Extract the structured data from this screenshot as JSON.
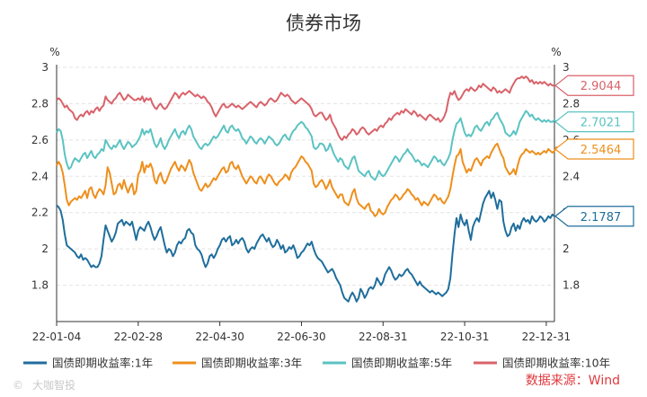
{
  "chart_data": {
    "type": "line",
    "title": "债券市场",
    "ylabel_left": "%",
    "ylabel_right": "%",
    "ylim": [
      1.6,
      3.0
    ],
    "yticks": [
      "1.8",
      "2",
      "2.2",
      "2.4",
      "2.6",
      "2.8",
      "3"
    ],
    "grid": true,
    "legend_position": "bottom",
    "x_tick_labels": [
      "22-01-04",
      "22-02-28",
      "22-04-30",
      "22-06-30",
      "22-08-31",
      "22-10-31",
      "22-12-31"
    ],
    "x_tick_index": [
      0,
      40,
      80,
      120,
      160,
      200,
      240
    ],
    "series": [
      {
        "name": "国债即期收益率:1年",
        "color": "#1f6e9c",
        "last_label": "2.1787",
        "values": [
          2.24,
          2.23,
          2.21,
          2.16,
          2.08,
          2.02,
          2.01,
          2.0,
          1.99,
          1.98,
          1.96,
          1.95,
          1.97,
          1.94,
          1.95,
          1.94,
          1.92,
          1.9,
          1.91,
          1.9,
          1.9,
          1.92,
          1.96,
          2.05,
          2.13,
          2.1,
          2.07,
          2.04,
          2.06,
          2.09,
          2.14,
          2.15,
          2.16,
          2.13,
          2.15,
          2.14,
          2.13,
          2.15,
          2.1,
          2.05,
          2.1,
          2.12,
          2.11,
          2.1,
          2.13,
          2.15,
          2.12,
          2.08,
          2.05,
          2.07,
          2.1,
          2.12,
          2.07,
          2.02,
          1.98,
          2.0,
          1.99,
          1.96,
          1.98,
          2.02,
          2.04,
          2.03,
          2.05,
          2.06,
          2.1,
          2.11,
          2.09,
          2.08,
          2.02,
          2.0,
          1.99,
          1.97,
          1.93,
          1.9,
          1.92,
          1.96,
          1.97,
          1.95,
          1.97,
          2.0,
          2.02,
          2.05,
          2.06,
          2.04,
          2.06,
          2.07,
          2.02,
          2.03,
          2.05,
          2.03,
          2.05,
          2.06,
          2.04,
          2.0,
          1.98,
          2.0,
          2.01,
          2.0,
          2.03,
          2.05,
          2.07,
          2.08,
          2.06,
          2.04,
          2.06,
          2.03,
          2.01,
          2.02,
          2.05,
          2.03,
          2.0,
          2.02,
          1.98,
          1.99,
          2.01,
          2.0,
          2.02,
          1.99,
          1.95,
          1.96,
          1.98,
          1.99,
          2.01,
          2.03,
          2.02,
          2.04,
          2.0,
          1.97,
          1.95,
          1.94,
          1.93,
          1.91,
          1.89,
          1.87,
          1.88,
          1.89,
          1.87,
          1.84,
          1.82,
          1.8,
          1.76,
          1.73,
          1.72,
          1.71,
          1.74,
          1.76,
          1.74,
          1.71,
          1.73,
          1.78,
          1.76,
          1.73,
          1.75,
          1.78,
          1.79,
          1.78,
          1.8,
          1.84,
          1.82,
          1.8,
          1.82,
          1.86,
          1.88,
          1.9,
          1.88,
          1.85,
          1.83,
          1.84,
          1.86,
          1.85,
          1.86,
          1.88,
          1.89,
          1.87,
          1.86,
          1.84,
          1.82,
          1.8,
          1.82,
          1.8,
          1.79,
          1.78,
          1.77,
          1.76,
          1.77,
          1.76,
          1.75,
          1.76,
          1.75,
          1.74,
          1.75,
          1.76,
          1.78,
          1.84,
          1.97,
          2.08,
          2.17,
          2.12,
          2.19,
          2.15,
          2.13,
          2.16,
          2.1,
          2.05,
          2.12,
          2.15,
          2.17,
          2.15,
          2.2,
          2.25,
          2.28,
          2.3,
          2.32,
          2.28,
          2.31,
          2.27,
          2.22,
          2.27,
          2.26,
          2.15,
          2.1,
          2.07,
          2.08,
          2.12,
          2.14,
          2.1,
          2.13,
          2.11,
          2.15,
          2.17,
          2.15,
          2.16,
          2.14,
          2.18,
          2.16,
          2.15,
          2.16,
          2.18,
          2.17,
          2.15,
          2.16,
          2.18,
          2.17,
          2.19,
          2.18
        ]
      },
      {
        "name": "国债即期收益率:3年",
        "color": "#ee8f1c",
        "last_label": "2.5464",
        "values": [
          2.46,
          2.48,
          2.46,
          2.42,
          2.35,
          2.27,
          2.24,
          2.26,
          2.27,
          2.28,
          2.27,
          2.29,
          2.28,
          2.3,
          2.32,
          2.28,
          2.33,
          2.34,
          2.3,
          2.28,
          2.31,
          2.33,
          2.32,
          2.3,
          2.35,
          2.45,
          2.42,
          2.36,
          2.3,
          2.31,
          2.35,
          2.36,
          2.33,
          2.38,
          2.34,
          2.31,
          2.34,
          2.36,
          2.3,
          2.32,
          2.41,
          2.43,
          2.48,
          2.42,
          2.46,
          2.45,
          2.47,
          2.44,
          2.38,
          2.36,
          2.4,
          2.42,
          2.38,
          2.36,
          2.38,
          2.41,
          2.44,
          2.46,
          2.48,
          2.45,
          2.43,
          2.46,
          2.45,
          2.43,
          2.46,
          2.49,
          2.47,
          2.42,
          2.39,
          2.36,
          2.33,
          2.32,
          2.34,
          2.36,
          2.34,
          2.35,
          2.37,
          2.39,
          2.38,
          2.4,
          2.42,
          2.44,
          2.45,
          2.42,
          2.43,
          2.47,
          2.48,
          2.45,
          2.44,
          2.46,
          2.43,
          2.4,
          2.38,
          2.36,
          2.38,
          2.4,
          2.39,
          2.37,
          2.36,
          2.39,
          2.4,
          2.38,
          2.36,
          2.39,
          2.41,
          2.4,
          2.38,
          2.36,
          2.35,
          2.37,
          2.38,
          2.39,
          2.41,
          2.4,
          2.38,
          2.42,
          2.44,
          2.45,
          2.47,
          2.49,
          2.51,
          2.5,
          2.48,
          2.47,
          2.45,
          2.43,
          2.36,
          2.34,
          2.35,
          2.37,
          2.38,
          2.36,
          2.33,
          2.35,
          2.38,
          2.34,
          2.32,
          2.3,
          2.28,
          2.3,
          2.3,
          2.26,
          2.25,
          2.24,
          2.27,
          2.31,
          2.33,
          2.28,
          2.25,
          2.24,
          2.23,
          2.22,
          2.24,
          2.25,
          2.21,
          2.2,
          2.18,
          2.19,
          2.22,
          2.2,
          2.19,
          2.2,
          2.23,
          2.25,
          2.27,
          2.28,
          2.3,
          2.29,
          2.27,
          2.28,
          2.3,
          2.31,
          2.33,
          2.32,
          2.3,
          2.29,
          2.27,
          2.28,
          2.26,
          2.24,
          2.26,
          2.25,
          2.24,
          2.26,
          2.28,
          2.3,
          2.29,
          2.27,
          2.28,
          2.26,
          2.25,
          2.27,
          2.29,
          2.33,
          2.4,
          2.46,
          2.51,
          2.52,
          2.55,
          2.48,
          2.45,
          2.42,
          2.44,
          2.43,
          2.46,
          2.49,
          2.5,
          2.48,
          2.46,
          2.49,
          2.5,
          2.51,
          2.5,
          2.53,
          2.55,
          2.57,
          2.58,
          2.55,
          2.52,
          2.5,
          2.45,
          2.43,
          2.41,
          2.42,
          2.44,
          2.41,
          2.46,
          2.5,
          2.52,
          2.53,
          2.55,
          2.54,
          2.53,
          2.54,
          2.53,
          2.52,
          2.53,
          2.52,
          2.53,
          2.54,
          2.53,
          2.55,
          2.54,
          2.53,
          2.54,
          2.56,
          2.55
        ]
      },
      {
        "name": "国债即期收益率:5年",
        "color": "#5bc3c2",
        "last_label": "2.7021",
        "values": [
          2.64,
          2.66,
          2.65,
          2.6,
          2.52,
          2.47,
          2.44,
          2.45,
          2.48,
          2.5,
          2.49,
          2.48,
          2.5,
          2.52,
          2.53,
          2.5,
          2.52,
          2.54,
          2.51,
          2.5,
          2.52,
          2.53,
          2.55,
          2.54,
          2.6,
          2.58,
          2.56,
          2.55,
          2.57,
          2.56,
          2.58,
          2.6,
          2.57,
          2.55,
          2.57,
          2.59,
          2.58,
          2.56,
          2.57,
          2.58,
          2.6,
          2.62,
          2.66,
          2.63,
          2.65,
          2.64,
          2.66,
          2.62,
          2.58,
          2.56,
          2.58,
          2.61,
          2.57,
          2.55,
          2.57,
          2.6,
          2.62,
          2.64,
          2.66,
          2.63,
          2.61,
          2.64,
          2.65,
          2.63,
          2.66,
          2.68,
          2.66,
          2.62,
          2.6,
          2.58,
          2.56,
          2.55,
          2.57,
          2.58,
          2.57,
          2.58,
          2.6,
          2.62,
          2.61,
          2.62,
          2.64,
          2.66,
          2.68,
          2.65,
          2.64,
          2.67,
          2.68,
          2.66,
          2.65,
          2.66,
          2.64,
          2.61,
          2.6,
          2.58,
          2.6,
          2.62,
          2.61,
          2.59,
          2.58,
          2.6,
          2.61,
          2.6,
          2.58,
          2.6,
          2.62,
          2.61,
          2.6,
          2.58,
          2.57,
          2.58,
          2.6,
          2.62,
          2.63,
          2.61,
          2.6,
          2.63,
          2.65,
          2.66,
          2.68,
          2.69,
          2.7,
          2.69,
          2.67,
          2.66,
          2.64,
          2.62,
          2.56,
          2.55,
          2.56,
          2.58,
          2.58,
          2.57,
          2.54,
          2.55,
          2.58,
          2.55,
          2.52,
          2.5,
          2.48,
          2.5,
          2.49,
          2.46,
          2.45,
          2.44,
          2.47,
          2.5,
          2.51,
          2.47,
          2.43,
          2.42,
          2.41,
          2.4,
          2.42,
          2.43,
          2.4,
          2.39,
          2.38,
          2.4,
          2.43,
          2.41,
          2.4,
          2.41,
          2.43,
          2.45,
          2.47,
          2.49,
          2.51,
          2.5,
          2.48,
          2.5,
          2.52,
          2.53,
          2.55,
          2.53,
          2.52,
          2.5,
          2.48,
          2.49,
          2.48,
          2.46,
          2.47,
          2.46,
          2.45,
          2.47,
          2.49,
          2.51,
          2.5,
          2.48,
          2.49,
          2.47,
          2.46,
          2.48,
          2.5,
          2.53,
          2.6,
          2.65,
          2.69,
          2.7,
          2.72,
          2.68,
          2.64,
          2.62,
          2.63,
          2.62,
          2.64,
          2.67,
          2.68,
          2.66,
          2.65,
          2.67,
          2.69,
          2.7,
          2.68,
          2.71,
          2.72,
          2.74,
          2.75,
          2.72,
          2.7,
          2.68,
          2.64,
          2.63,
          2.62,
          2.63,
          2.65,
          2.63,
          2.66,
          2.7,
          2.72,
          2.74,
          2.76,
          2.75,
          2.73,
          2.74,
          2.72,
          2.71,
          2.72,
          2.71,
          2.7,
          2.71,
          2.7,
          2.71,
          2.7,
          2.7,
          2.71,
          2.7,
          2.7
        ]
      },
      {
        "name": "国债即期收益率:10年",
        "color": "#d9626a",
        "last_label": "2.9044",
        "values": [
          2.82,
          2.83,
          2.82,
          2.8,
          2.78,
          2.79,
          2.77,
          2.76,
          2.75,
          2.72,
          2.71,
          2.73,
          2.74,
          2.73,
          2.75,
          2.76,
          2.74,
          2.76,
          2.75,
          2.77,
          2.78,
          2.76,
          2.78,
          2.79,
          2.84,
          2.82,
          2.81,
          2.8,
          2.82,
          2.83,
          2.85,
          2.86,
          2.84,
          2.82,
          2.83,
          2.85,
          2.84,
          2.83,
          2.82,
          2.82,
          2.83,
          2.82,
          2.84,
          2.81,
          2.83,
          2.82,
          2.83,
          2.8,
          2.78,
          2.77,
          2.79,
          2.8,
          2.78,
          2.77,
          2.78,
          2.8,
          2.82,
          2.84,
          2.86,
          2.85,
          2.83,
          2.85,
          2.86,
          2.85,
          2.86,
          2.87,
          2.86,
          2.85,
          2.84,
          2.85,
          2.84,
          2.83,
          2.84,
          2.83,
          2.81,
          2.8,
          2.78,
          2.75,
          2.73,
          2.75,
          2.77,
          2.79,
          2.8,
          2.78,
          2.78,
          2.79,
          2.8,
          2.79,
          2.78,
          2.79,
          2.78,
          2.77,
          2.78,
          2.79,
          2.8,
          2.81,
          2.8,
          2.79,
          2.78,
          2.8,
          2.81,
          2.8,
          2.79,
          2.8,
          2.82,
          2.83,
          2.82,
          2.81,
          2.82,
          2.84,
          2.86,
          2.85,
          2.84,
          2.85,
          2.84,
          2.82,
          2.81,
          2.8,
          2.81,
          2.82,
          2.83,
          2.82,
          2.81,
          2.8,
          2.79,
          2.77,
          2.74,
          2.73,
          2.74,
          2.75,
          2.75,
          2.73,
          2.71,
          2.72,
          2.74,
          2.7,
          2.68,
          2.66,
          2.63,
          2.61,
          2.6,
          2.62,
          2.61,
          2.63,
          2.64,
          2.66,
          2.65,
          2.63,
          2.64,
          2.66,
          2.67,
          2.66,
          2.64,
          2.63,
          2.64,
          2.65,
          2.66,
          2.65,
          2.67,
          2.68,
          2.67,
          2.69,
          2.7,
          2.72,
          2.71,
          2.73,
          2.74,
          2.75,
          2.74,
          2.76,
          2.75,
          2.77,
          2.76,
          2.75,
          2.74,
          2.76,
          2.75,
          2.73,
          2.74,
          2.73,
          2.72,
          2.71,
          2.73,
          2.74,
          2.73,
          2.72,
          2.71,
          2.72,
          2.7,
          2.71,
          2.73,
          2.76,
          2.82,
          2.86,
          2.85,
          2.87,
          2.84,
          2.82,
          2.83,
          2.85,
          2.87,
          2.88,
          2.87,
          2.89,
          2.88,
          2.87,
          2.88,
          2.9,
          2.89,
          2.91,
          2.9,
          2.89,
          2.88,
          2.87,
          2.89,
          2.88,
          2.86,
          2.87,
          2.86,
          2.87,
          2.88,
          2.87,
          2.86,
          2.89,
          2.91,
          2.93,
          2.94,
          2.94,
          2.95,
          2.94,
          2.95,
          2.94,
          2.92,
          2.93,
          2.91,
          2.92,
          2.91,
          2.92,
          2.91,
          2.92,
          2.91,
          2.9,
          2.91,
          2.9,
          2.9
        ]
      }
    ]
  },
  "source_label": "数据来源：Wind",
  "watermark": "大咖智投"
}
